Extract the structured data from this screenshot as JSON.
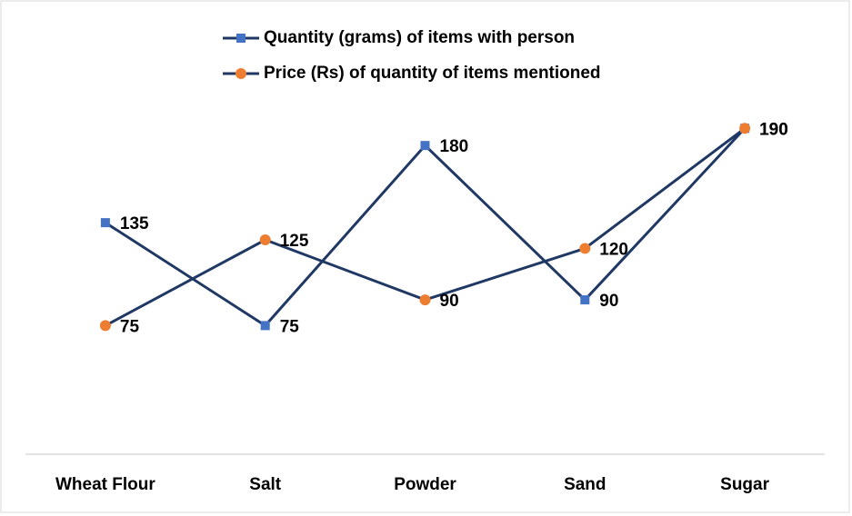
{
  "chart_data": {
    "type": "line",
    "categories": [
      "Wheat Flour",
      "Salt",
      "Powder",
      "Sand",
      "Sugar"
    ],
    "series": [
      {
        "name": "Quantity (grams) of items with person",
        "color": "#203864",
        "marker": "square",
        "marker_color": "#4472c4",
        "values": [
          135,
          75,
          180,
          90,
          190
        ]
      },
      {
        "name": "Price (Rs) of quantity of items mentioned",
        "color": "#203864",
        "marker": "circle",
        "marker_color": "#ed7d31",
        "values": [
          75,
          125,
          90,
          120,
          190
        ]
      }
    ],
    "ylim": [
      0,
      250
    ],
    "legend": "top",
    "data_labels": true,
    "grid": false
  }
}
